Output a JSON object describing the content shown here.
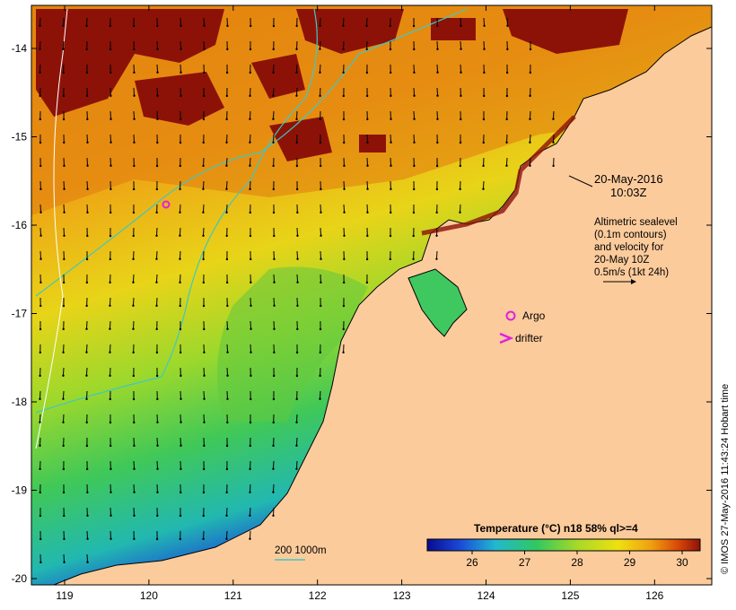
{
  "map": {
    "y_axis_labels": [
      "-14",
      "-15",
      "-16",
      "-17",
      "-18",
      "-19",
      "-20"
    ],
    "x_axis_labels": [
      "119",
      "120",
      "121",
      "122",
      "123",
      "124",
      "125",
      "126"
    ],
    "date_line1": "20-May-2016",
    "date_line2": "10:03Z",
    "info_lines": [
      "Altimetric sealevel",
      "(0.1m contours)",
      "and velocity for",
      "20-May 10Z",
      "0.5m/s (1kt 24h)"
    ],
    "argo_label": "Argo",
    "drifter_label": "drifter",
    "isobath_label": "200  1000m",
    "colorbar_title": "Temperature (°C) n18 58% ql>=4",
    "colorbar_ticks": [
      "26",
      "27",
      "28",
      "29",
      "30"
    ],
    "side_credit": "© IMOS 27-May-2016 11:43:24 Hobart time",
    "colors": {
      "land": "#fccb9c",
      "argo": "#e020e0",
      "drifter": "#e020e0",
      "isobath": "#40c8c0",
      "cloud": "#8c1208"
    }
  }
}
